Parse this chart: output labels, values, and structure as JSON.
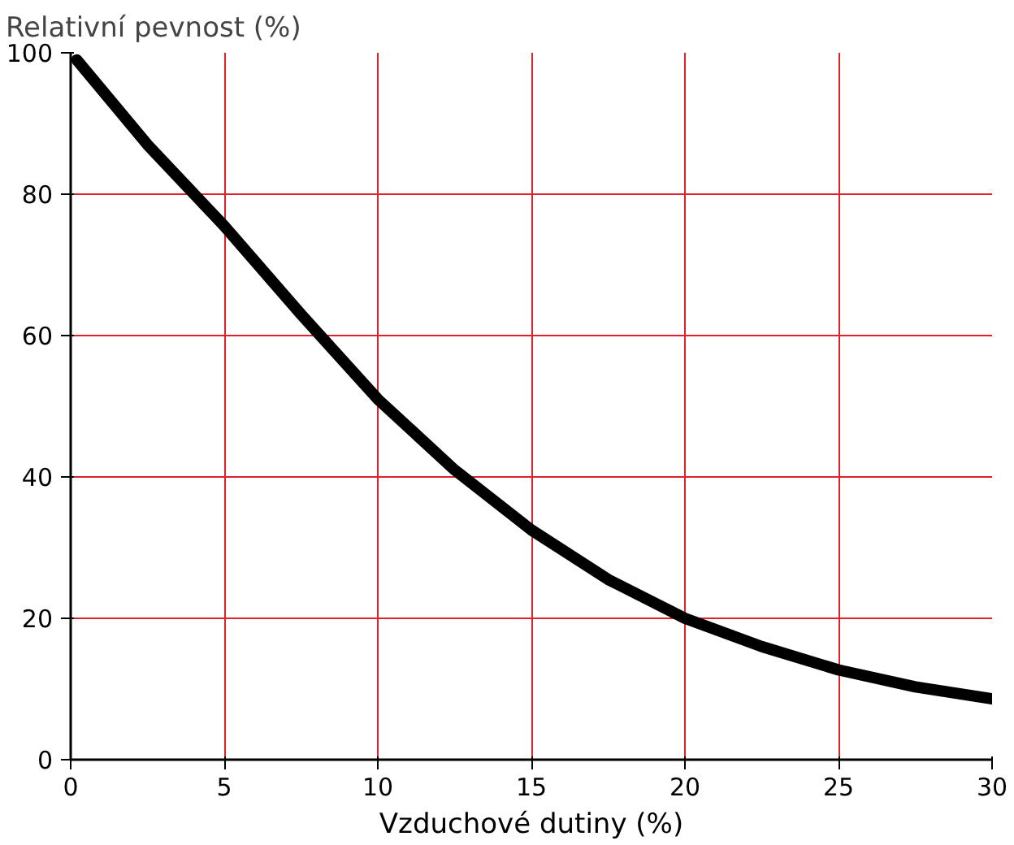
{
  "chart_data": {
    "type": "line",
    "xlabel": "Vzduchové dutiny (%)",
    "ylabel": "Relativní pevnost (%)",
    "x": [
      0.2,
      2.5,
      5,
      7.5,
      10,
      12.5,
      15,
      17.5,
      20,
      22.5,
      25,
      27.5,
      30
    ],
    "series": [
      {
        "color": "#000000",
        "values": [
          99,
          87,
          75.5,
          63,
          51,
          41,
          32.5,
          25.5,
          20,
          16,
          12.7,
          10.3,
          8.6
        ]
      }
    ],
    "xlim": [
      0,
      30
    ],
    "ylim": [
      0,
      100
    ],
    "xticks": [
      0,
      5,
      10,
      15,
      20,
      25,
      30
    ],
    "yticks": [
      0,
      20,
      40,
      60,
      80,
      100
    ],
    "grid": true,
    "marker": "none",
    "line_style": "solid"
  }
}
